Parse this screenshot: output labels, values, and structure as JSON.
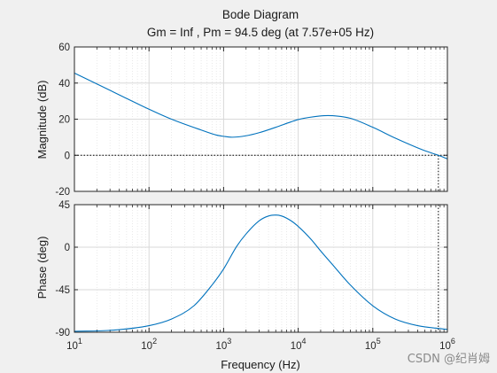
{
  "figure": {
    "title_line1": "Bode Diagram",
    "title_line2": "Gm = Inf ,  Pm = 94.5 deg (at 7.57e+05 Hz)",
    "watermark": "CSDN @纪肖姆"
  },
  "chart_data": [
    {
      "type": "line",
      "panel": "magnitude",
      "title": "Bode Diagram",
      "subtitle": "Gm = Inf ,  Pm = 94.5 deg (at 7.57e+05 Hz)",
      "xlabel": "Frequency  (Hz)",
      "ylabel": "Magnitude (dB)",
      "xscale": "log",
      "xlim": [
        10,
        1000000
      ],
      "ylim": [
        -20,
        60
      ],
      "yticks": [
        -20,
        0,
        20,
        40,
        60
      ],
      "ytick_labels": [
        "-20",
        "0",
        "20",
        "40",
        "60"
      ],
      "grid": true,
      "series": [
        {
          "color": "#0072bd",
          "x": [
            10,
            20,
            50,
            100,
            200,
            500,
            800,
            1000,
            1300,
            2000,
            3000,
            5000,
            8000,
            10000,
            20000,
            25000,
            30000,
            50000,
            100000,
            200000,
            500000,
            757000,
            1000000
          ],
          "y": [
            45.5,
            39.5,
            31.5,
            25.5,
            20.0,
            14.0,
            11.2,
            10.5,
            10.0,
            10.8,
            12.5,
            15.5,
            18.5,
            19.8,
            21.8,
            22.0,
            21.9,
            20.5,
            15.5,
            9.5,
            2.5,
            0,
            -2
          ]
        }
      ],
      "reference_lines": {
        "y0_dotted": 0,
        "crossover_hz": 757000
      }
    },
    {
      "type": "line",
      "panel": "phase",
      "xlabel": "Frequency  (Hz)",
      "ylabel": "Phase (deg)",
      "xscale": "log",
      "xlim": [
        10,
        1000000
      ],
      "ylim": [
        -90,
        45
      ],
      "yticks": [
        -90,
        -45,
        0,
        45
      ],
      "ytick_labels": [
        "-90",
        "-45",
        "0",
        "45"
      ],
      "xtick_bases": [
        "10",
        "10",
        "10",
        "10",
        "10",
        "10"
      ],
      "xtick_exps": [
        "1",
        "2",
        "3",
        "4",
        "5",
        "6"
      ],
      "grid": true,
      "series": [
        {
          "color": "#0072bd",
          "x": [
            10,
            30,
            100,
            200,
            400,
            700,
            1000,
            1500,
            2000,
            3000,
            4000,
            5000,
            6000,
            8000,
            10000,
            15000,
            20000,
            30000,
            50000,
            100000,
            200000,
            400000,
            757000,
            1000000
          ],
          "y": [
            -89,
            -88,
            -83,
            -76,
            -62,
            -40,
            -23,
            1,
            14,
            28,
            33,
            34,
            33,
            28,
            22,
            8,
            -4,
            -20,
            -40,
            -62,
            -76,
            -83,
            -86,
            -87
          ]
        }
      ],
      "reference_lines": {
        "crossover_hz": 757000
      }
    }
  ]
}
